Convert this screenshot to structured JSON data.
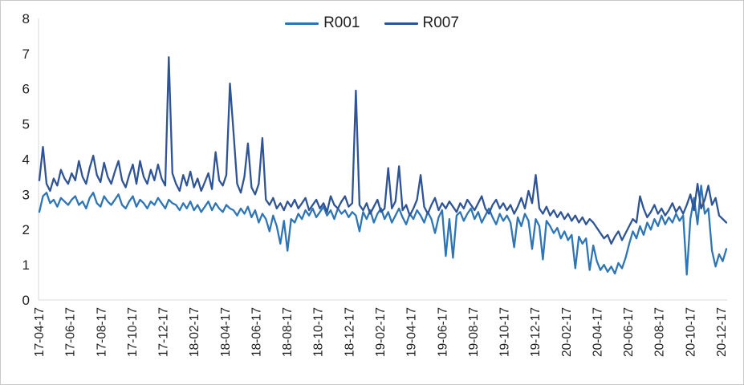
{
  "window": {
    "type": "excel-style line chart screenshot"
  },
  "colors": {
    "series_r001": "#2E75B6",
    "series_r007": "#2F5496",
    "axis_line": "#D9D9D9",
    "tick_text": "#1f1f1f",
    "frame_border": "#c9c9c9",
    "background": "#ffffff"
  },
  "legend": {
    "items": [
      {
        "label": "R001",
        "color": "#2E75B6"
      },
      {
        "label": "R007",
        "color": "#2F5496"
      }
    ]
  },
  "chart_data": {
    "type": "line",
    "title": "",
    "xlabel": "",
    "ylabel": "",
    "ylim": [
      0,
      8
    ],
    "y_ticks": [
      "0",
      "1",
      "2",
      "3",
      "4",
      "5",
      "6",
      "7",
      "8"
    ],
    "grid": false,
    "legend_position": "top-center",
    "x_tick_labels": [
      "17-04-17",
      "17-06-17",
      "17-08-17",
      "17-10-17",
      "17-12-17",
      "18-02-17",
      "18-04-17",
      "18-06-17",
      "18-08-17",
      "18-10-17",
      "18-12-17",
      "19-02-17",
      "19-04-17",
      "19-06-17",
      "19-08-17",
      "19-10-17",
      "19-12-17",
      "20-02-17",
      "20-04-17",
      "20-06-17",
      "20-08-17",
      "20-10-17",
      "20-12-17"
    ],
    "x_range_note": "weekly observations from 17-04-17 to 20-12-17",
    "series": [
      {
        "name": "R001",
        "color": "#2E75B6",
        "values": [
          2.5,
          2.95,
          3.05,
          2.75,
          2.85,
          2.65,
          2.9,
          2.8,
          2.7,
          2.85,
          2.95,
          2.7,
          2.8,
          2.6,
          2.9,
          3.05,
          2.75,
          2.65,
          2.95,
          2.8,
          2.7,
          2.85,
          3.0,
          2.7,
          2.6,
          2.8,
          2.95,
          2.65,
          2.85,
          2.75,
          2.6,
          2.8,
          2.7,
          2.9,
          2.75,
          2.6,
          2.85,
          2.75,
          2.7,
          2.55,
          2.75,
          2.6,
          2.8,
          2.55,
          2.7,
          2.5,
          2.65,
          2.8,
          2.55,
          2.75,
          2.6,
          2.5,
          2.7,
          2.6,
          2.55,
          2.4,
          2.6,
          2.45,
          2.65,
          2.35,
          2.55,
          2.2,
          2.45,
          2.3,
          1.95,
          2.4,
          2.1,
          1.6,
          2.25,
          1.4,
          2.3,
          2.2,
          2.45,
          2.3,
          2.55,
          2.4,
          2.6,
          2.35,
          2.5,
          2.65,
          2.4,
          2.55,
          2.3,
          2.6,
          2.45,
          2.55,
          2.35,
          2.5,
          2.4,
          1.95,
          2.5,
          2.3,
          2.55,
          2.2,
          2.45,
          2.6,
          2.3,
          2.5,
          2.2,
          2.4,
          2.6,
          2.35,
          2.15,
          2.45,
          2.3,
          2.55,
          2.4,
          2.2,
          2.5,
          2.3,
          1.9,
          2.35,
          2.55,
          1.25,
          2.3,
          1.2,
          2.4,
          2.5,
          2.25,
          2.45,
          2.6,
          2.3,
          2.5,
          2.2,
          2.4,
          2.6,
          2.35,
          2.15,
          2.45,
          2.25,
          2.4,
          2.2,
          1.5,
          2.35,
          2.1,
          2.45,
          2.25,
          1.45,
          2.3,
          2.1,
          1.15,
          2.25,
          2.1,
          1.9,
          2.05,
          1.75,
          1.95,
          1.7,
          1.85,
          0.9,
          1.8,
          1.6,
          1.75,
          0.85,
          1.55,
          1.1,
          0.85,
          1.0,
          0.8,
          0.95,
          0.75,
          1.05,
          0.9,
          1.2,
          1.6,
          1.95,
          1.75,
          2.1,
          1.85,
          2.2,
          2.0,
          2.3,
          2.1,
          2.4,
          2.15,
          2.35,
          2.2,
          2.45,
          2.25,
          2.4,
          0.72,
          2.3,
          2.9,
          2.15,
          3.25,
          2.45,
          2.6,
          1.4,
          0.95,
          1.3,
          1.1,
          1.45
        ]
      },
      {
        "name": "R007",
        "color": "#2F5496",
        "values": [
          3.4,
          4.35,
          3.3,
          3.1,
          3.45,
          3.25,
          3.7,
          3.45,
          3.3,
          3.6,
          3.4,
          3.95,
          3.5,
          3.3,
          3.75,
          4.1,
          3.55,
          3.35,
          3.9,
          3.5,
          3.3,
          3.65,
          3.95,
          3.4,
          3.2,
          3.55,
          3.85,
          3.3,
          3.95,
          3.5,
          3.3,
          3.7,
          3.4,
          3.85,
          3.45,
          3.25,
          6.9,
          3.6,
          3.3,
          3.1,
          3.55,
          3.25,
          3.65,
          3.2,
          3.45,
          3.1,
          3.35,
          3.6,
          3.15,
          4.2,
          3.4,
          3.25,
          3.55,
          6.15,
          4.75,
          3.3,
          3.05,
          3.5,
          4.45,
          3.2,
          3.0,
          3.3,
          4.6,
          2.85,
          2.7,
          2.9,
          2.6,
          2.75,
          2.55,
          2.8,
          2.65,
          2.85,
          2.6,
          2.75,
          2.9,
          2.55,
          2.7,
          2.85,
          2.6,
          2.75,
          2.5,
          2.95,
          2.7,
          2.6,
          2.8,
          2.95,
          2.65,
          2.75,
          5.95,
          2.7,
          2.55,
          2.75,
          2.45,
          2.65,
          2.85,
          2.5,
          2.6,
          3.75,
          2.6,
          2.8,
          3.8,
          2.55,
          2.7,
          2.4,
          2.6,
          2.85,
          3.55,
          2.65,
          2.45,
          2.7,
          2.9,
          2.55,
          2.75,
          2.6,
          2.8,
          2.65,
          2.5,
          2.75,
          2.6,
          2.85,
          2.7,
          2.55,
          2.75,
          2.95,
          2.6,
          2.45,
          2.7,
          2.85,
          2.6,
          2.75,
          2.55,
          2.7,
          2.45,
          2.65,
          2.9,
          2.6,
          3.1,
          2.75,
          3.55,
          2.6,
          2.45,
          2.65,
          2.4,
          2.55,
          2.35,
          2.5,
          2.3,
          2.45,
          2.25,
          2.4,
          2.2,
          2.35,
          2.15,
          2.3,
          2.2,
          2.05,
          1.9,
          1.75,
          1.85,
          1.6,
          1.8,
          1.95,
          1.7,
          1.9,
          2.1,
          2.3,
          2.2,
          2.95,
          2.6,
          2.35,
          2.5,
          2.7,
          2.45,
          2.6,
          2.4,
          2.55,
          2.75,
          2.5,
          2.65,
          2.45,
          2.7,
          3.0,
          2.55,
          3.3,
          2.6,
          2.85,
          3.25,
          2.7,
          2.9,
          2.4,
          2.3,
          2.2
        ]
      }
    ]
  }
}
